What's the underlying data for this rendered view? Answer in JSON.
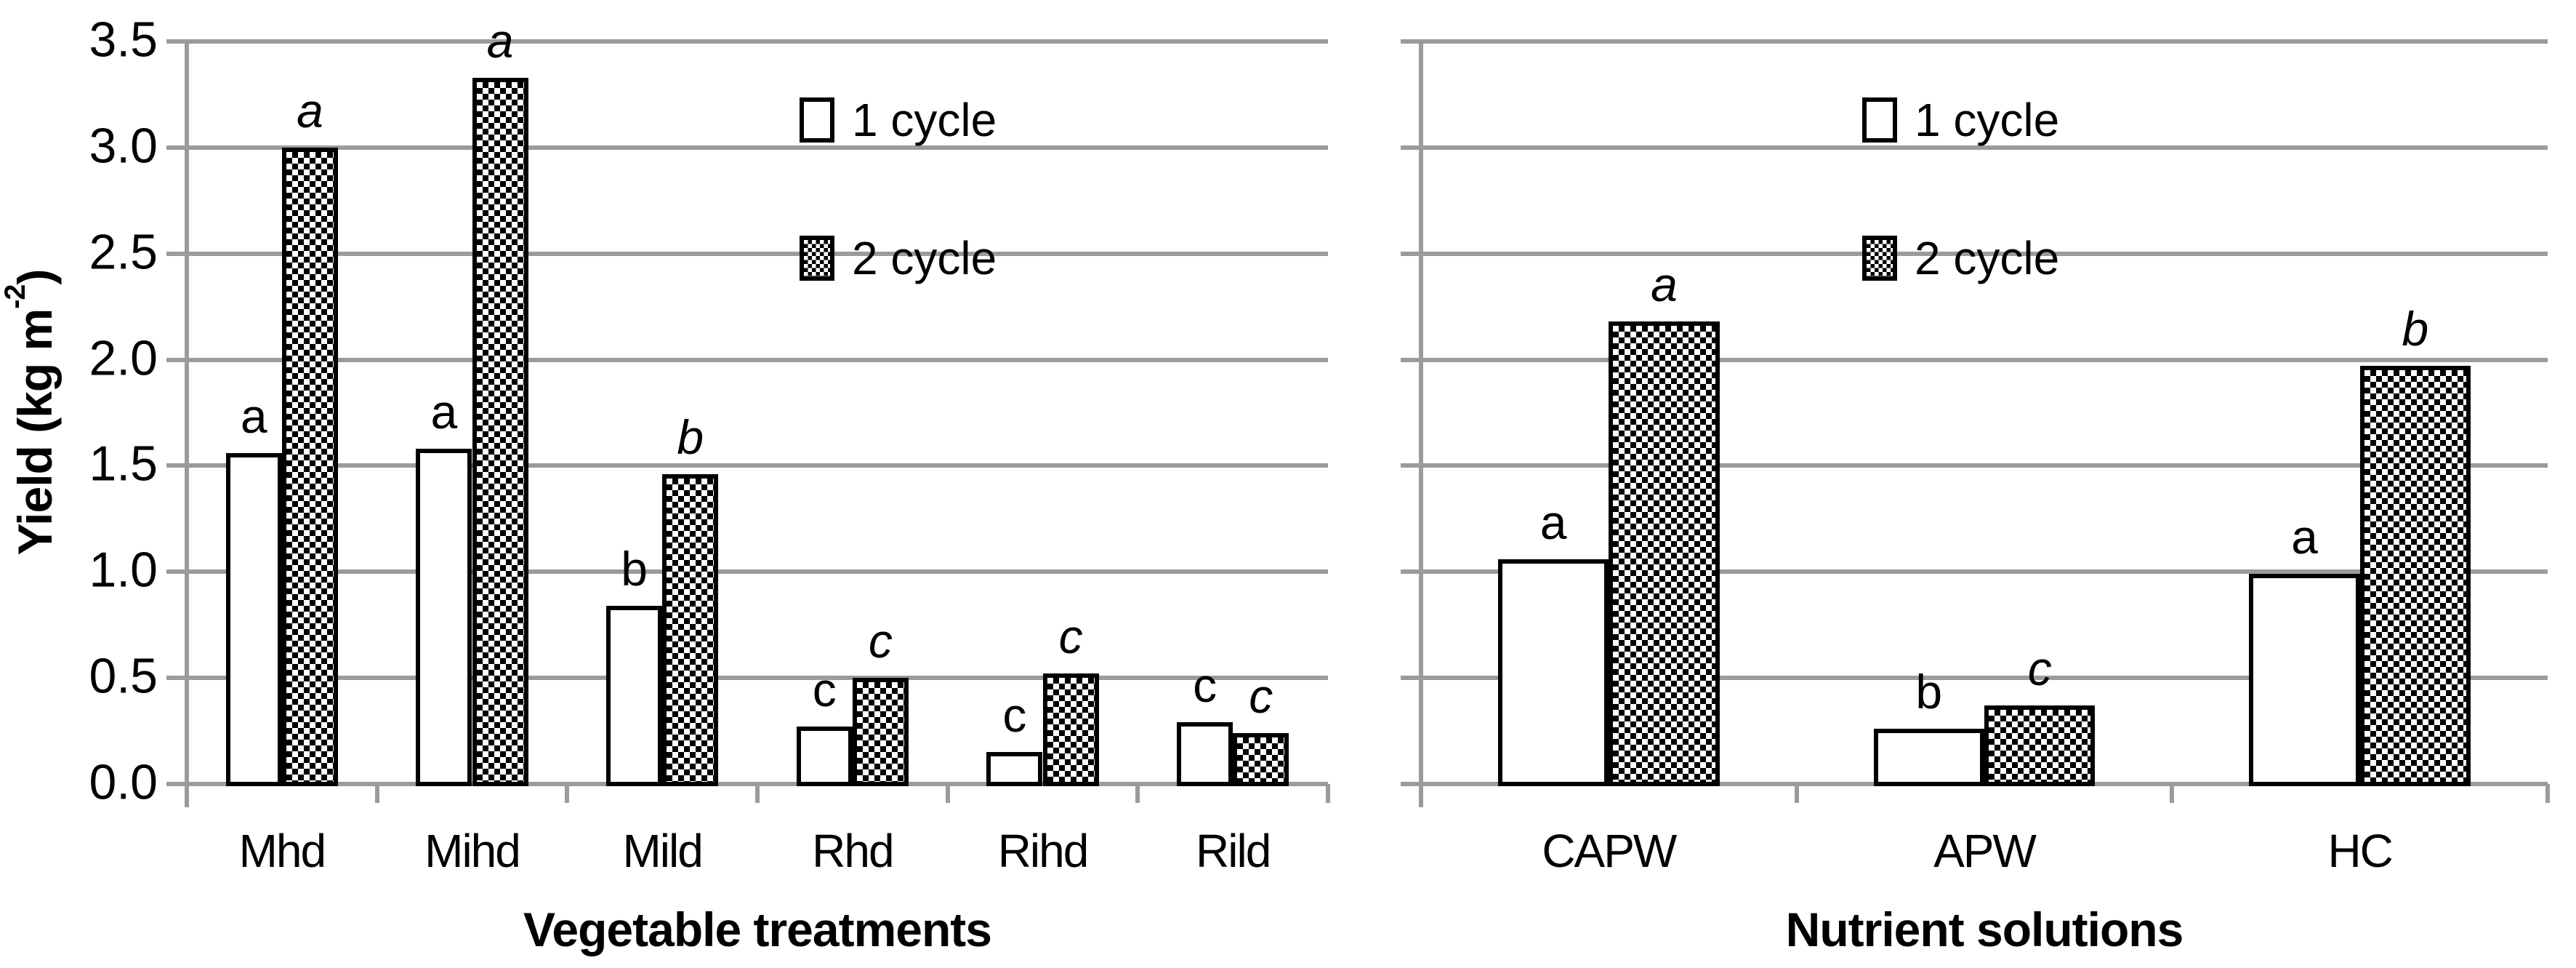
{
  "figure": {
    "background": "#ffffff"
  },
  "axes": {
    "y_title_base": "Yield (kg m",
    "y_title_sup": "-2",
    "y_title_close": ")",
    "yticks": [
      "0.0",
      "0.5",
      "1.0",
      "1.5",
      "2.0",
      "2.5",
      "3.0",
      "3.5"
    ],
    "ylim": [
      0,
      3.5
    ],
    "grid_color": "#9b9b9b",
    "bar_border_color": "#000000",
    "bar_fill_color": "#ffffff"
  },
  "legend": {
    "position": "top-center",
    "items": [
      {
        "label": "1 cycle",
        "swatch": "white"
      },
      {
        "label": "2 cycle",
        "swatch": "checker"
      }
    ]
  },
  "chart_data": [
    {
      "type": "bar",
      "xlabel": "Vegetable treatments",
      "ylabel": "Yield (kg m-2)",
      "ylim": [
        0,
        3.5
      ],
      "grid": true,
      "categories": [
        "Mhd",
        "Mihd",
        "Mild",
        "Rhd",
        "Rihd",
        "Rild"
      ],
      "series": [
        {
          "name": "1 cycle",
          "fill": "white",
          "letter_style": "normal",
          "values": [
            1.56,
            1.58,
            0.84,
            0.27,
            0.15,
            0.29
          ],
          "sig_letters": [
            "a",
            "a",
            "b",
            "c",
            "c",
            "c"
          ]
        },
        {
          "name": "2 cycle",
          "fill": "checker",
          "letter_style": "italic",
          "values": [
            3.0,
            3.33,
            1.46,
            0.5,
            0.52,
            0.24
          ],
          "sig_letters": [
            "a",
            "a",
            "b",
            "c",
            "c",
            "c"
          ]
        }
      ]
    },
    {
      "type": "bar",
      "xlabel": "Nutrient solutions",
      "ylabel": "Yield (kg m-2)",
      "ylim": [
        0,
        3.5
      ],
      "grid": true,
      "categories": [
        "CAPW",
        "APW",
        "HC"
      ],
      "series": [
        {
          "name": "1 cycle",
          "fill": "white",
          "letter_style": "normal",
          "values": [
            1.06,
            0.26,
            0.99
          ],
          "sig_letters": [
            "a",
            "b",
            "a"
          ]
        },
        {
          "name": "2 cycle",
          "fill": "checker",
          "letter_style": "italic",
          "values": [
            2.18,
            0.37,
            1.97
          ],
          "sig_letters": [
            "a",
            "c",
            "b"
          ]
        }
      ]
    }
  ]
}
